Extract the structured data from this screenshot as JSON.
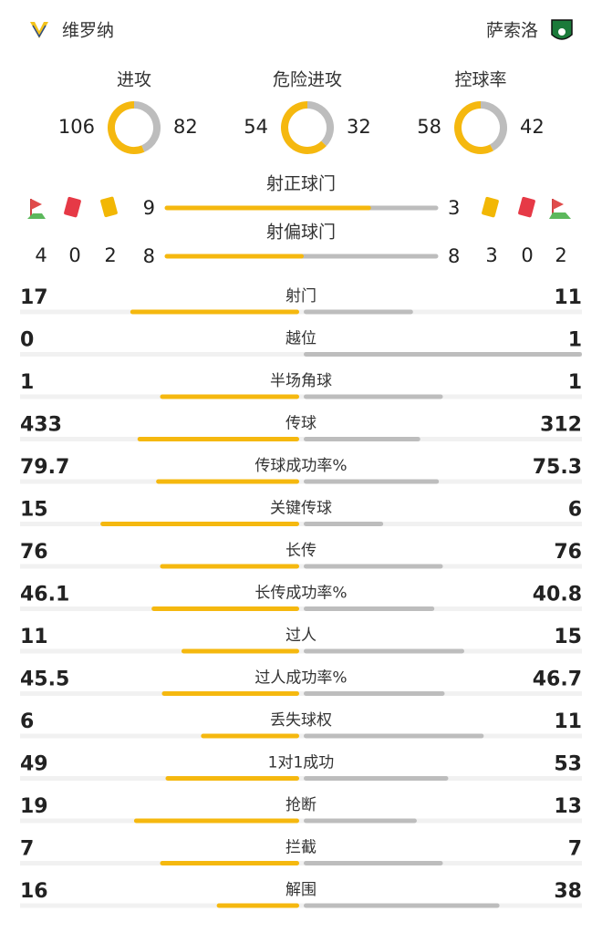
{
  "header": {
    "home_team": "维罗纳",
    "away_team": "萨索洛"
  },
  "summary": [
    {
      "label": "进攻",
      "home": 106,
      "away": 82
    },
    {
      "label": "危险进攻",
      "home": 54,
      "away": 32
    },
    {
      "label": "控球率",
      "home": 58,
      "away": 42
    }
  ],
  "shots": [
    {
      "label": "射正球门",
      "home": 9,
      "away": 3
    },
    {
      "label": "射偏球门",
      "home": 8,
      "away": 8
    }
  ],
  "discipline": {
    "home": {
      "corners": 4,
      "red_cards": 0,
      "yellow_cards": 2
    },
    "away": {
      "yellow_cards": 3,
      "red_cards": 0,
      "corners": 2
    }
  },
  "stats": [
    {
      "label": "射门",
      "home": 17,
      "away": 11
    },
    {
      "label": "越位",
      "home": 0,
      "away": 1
    },
    {
      "label": "半场角球",
      "home": 1,
      "away": 1
    },
    {
      "label": "传球",
      "home": 433,
      "away": 312
    },
    {
      "label": "传球成功率%",
      "home": 79.7,
      "away": 75.3
    },
    {
      "label": "关键传球",
      "home": 15,
      "away": 6
    },
    {
      "label": "长传",
      "home": 76,
      "away": 76
    },
    {
      "label": "长传成功率%",
      "home": 46.1,
      "away": 40.8
    },
    {
      "label": "过人",
      "home": 11,
      "away": 15
    },
    {
      "label": "过人成功率%",
      "home": 45.5,
      "away": 46.7
    },
    {
      "label": "丢失球权",
      "home": 6,
      "away": 11
    },
    {
      "label": "1对1成功",
      "home": 49,
      "away": 53
    },
    {
      "label": "抢断",
      "home": 19,
      "away": 13
    },
    {
      "label": "拦截",
      "home": 7,
      "away": 7
    },
    {
      "label": "解围",
      "home": 16,
      "away": 38
    }
  ]
}
